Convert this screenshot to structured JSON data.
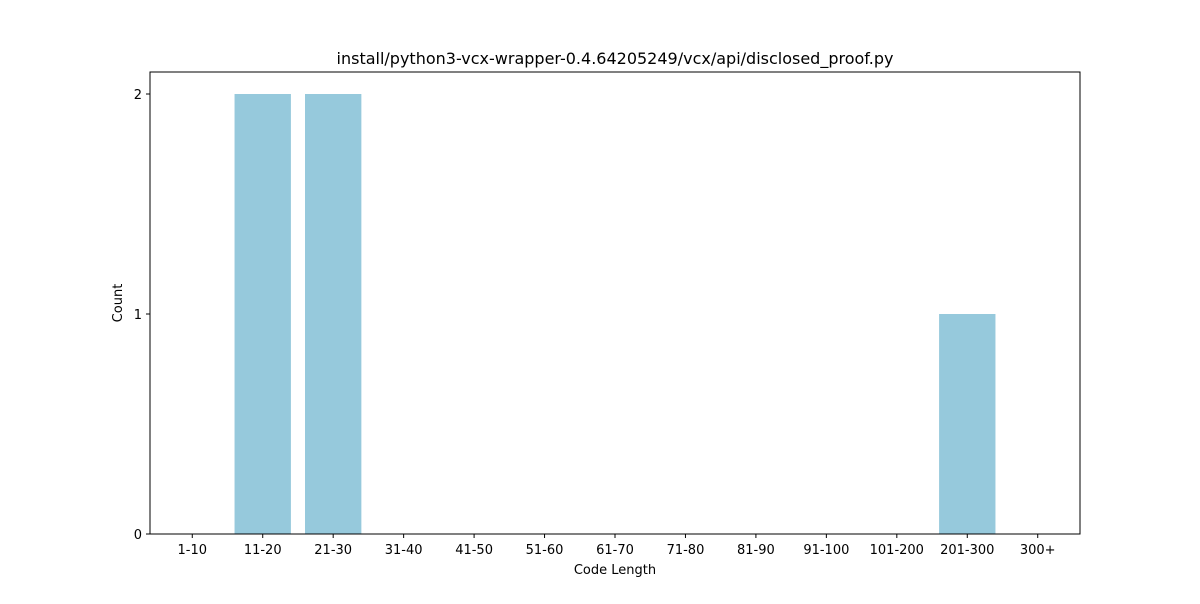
{
  "chart_data": {
    "type": "bar",
    "title": "install/python3-vcx-wrapper-0.4.64205249/vcx/api/disclosed_proof.py",
    "xlabel": "Code Length",
    "ylabel": "Count",
    "categories": [
      "1-10",
      "11-20",
      "21-30",
      "31-40",
      "41-50",
      "51-60",
      "61-70",
      "71-80",
      "81-90",
      "91-100",
      "101-200",
      "201-300",
      "300+"
    ],
    "values": [
      0,
      2,
      2,
      0,
      0,
      0,
      0,
      0,
      0,
      0,
      0,
      1,
      0
    ],
    "ylim": [
      0,
      2.1
    ],
    "yticks": [
      0,
      1,
      2
    ],
    "grid": false,
    "legend": "none",
    "bar_color": "#96c9dc"
  }
}
